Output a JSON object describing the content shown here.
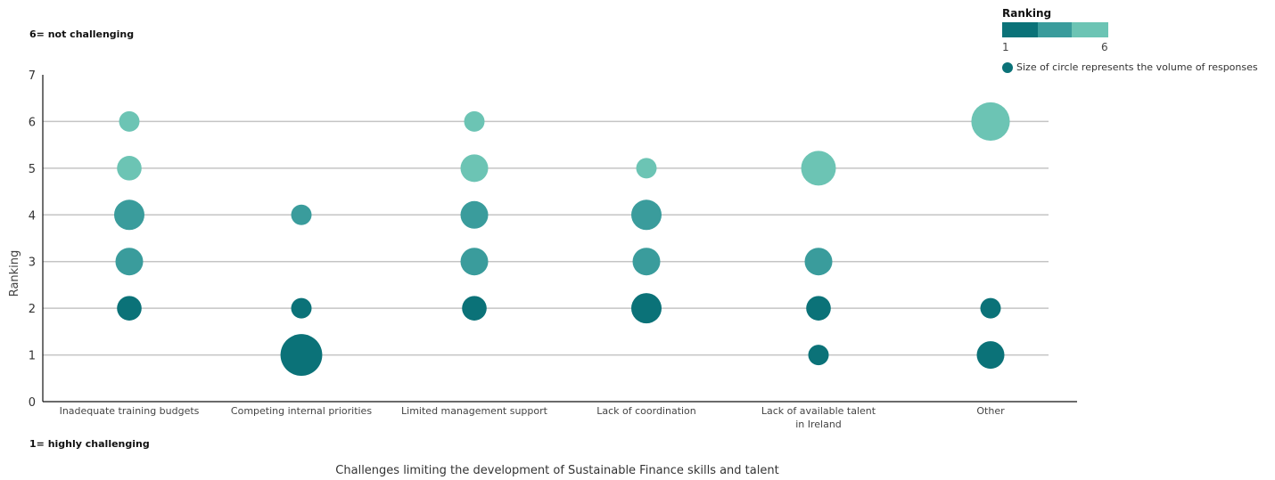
{
  "notes": {
    "top": "6= not challenging",
    "bottom": "1= highly challenging"
  },
  "legend": {
    "title": "Ranking",
    "min_label": "1",
    "max_label": "6",
    "scale_colors": [
      "#0b7278",
      "#3a9c9c",
      "#6cc4b4"
    ],
    "size_note": "Size of circle represents the volume of responses"
  },
  "colors": {
    "rank_1_2": "#0b7278",
    "rank_3_4": "#3a9c9c",
    "rank_5_6": "#6cc4b4",
    "gridline": "#c4c4c4",
    "axis": "#111111"
  },
  "chart_data": {
    "type": "scatter",
    "title": "Challenges limiting the development of Sustainable Finance skills and talent",
    "xlabel": "",
    "ylabel": "Ranking",
    "ylim": [
      0,
      7
    ],
    "y_ticks": [
      0,
      1,
      2,
      3,
      4,
      5,
      6,
      7
    ],
    "grid": true,
    "categories": [
      [
        "Inadequate training budgets"
      ],
      [
        "Competing internal priorities"
      ],
      [
        "Limited management support"
      ],
      [
        "Lack of coordination"
      ],
      [
        "Lack of available talent",
        "in Ireland"
      ],
      [
        "Other"
      ]
    ],
    "points": [
      {
        "category": 0,
        "ranking": 6,
        "size": 1
      },
      {
        "category": 0,
        "ranking": 5,
        "size": 2
      },
      {
        "category": 0,
        "ranking": 4,
        "size": 4
      },
      {
        "category": 0,
        "ranking": 3,
        "size": 3
      },
      {
        "category": 0,
        "ranking": 2,
        "size": 2
      },
      {
        "category": 1,
        "ranking": 4,
        "size": 1
      },
      {
        "category": 1,
        "ranking": 2,
        "size": 1
      },
      {
        "category": 1,
        "ranking": 1,
        "size": 10
      },
      {
        "category": 2,
        "ranking": 6,
        "size": 1
      },
      {
        "category": 2,
        "ranking": 5,
        "size": 3
      },
      {
        "category": 2,
        "ranking": 4,
        "size": 3
      },
      {
        "category": 2,
        "ranking": 3,
        "size": 3
      },
      {
        "category": 2,
        "ranking": 2,
        "size": 2
      },
      {
        "category": 3,
        "ranking": 5,
        "size": 1
      },
      {
        "category": 3,
        "ranking": 4,
        "size": 4
      },
      {
        "category": 3,
        "ranking": 3,
        "size": 3
      },
      {
        "category": 3,
        "ranking": 2,
        "size": 4
      },
      {
        "category": 4,
        "ranking": 5,
        "size": 6
      },
      {
        "category": 4,
        "ranking": 3,
        "size": 3
      },
      {
        "category": 4,
        "ranking": 2,
        "size": 2
      },
      {
        "category": 4,
        "ranking": 1,
        "size": 1
      },
      {
        "category": 5,
        "ranking": 6,
        "size": 8
      },
      {
        "category": 5,
        "ranking": 2,
        "size": 1
      },
      {
        "category": 5,
        "ranking": 1,
        "size": 3
      }
    ]
  }
}
